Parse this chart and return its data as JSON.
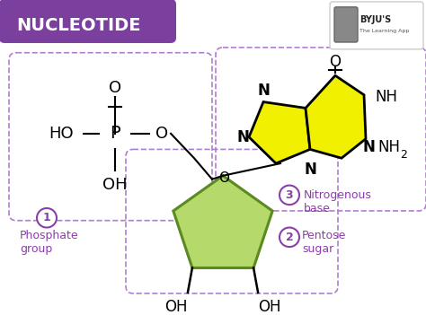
{
  "title": "NUCLEOTIDE",
  "title_bg": "#7b3f9e",
  "title_color": "#ffffff",
  "bg_color": "#ffffff",
  "label1": "Phosphate\ngroup",
  "label2": "Pentose\nsugar",
  "label3": "Nitrogenous\nbase",
  "label_color": "#8b3fa8",
  "box_border_color": "#b07fd0",
  "sugar_fill": "#b5d96b",
  "sugar_dark": "#5a8a20",
  "base_fill": "#f0f000",
  "base_border": "#333333"
}
